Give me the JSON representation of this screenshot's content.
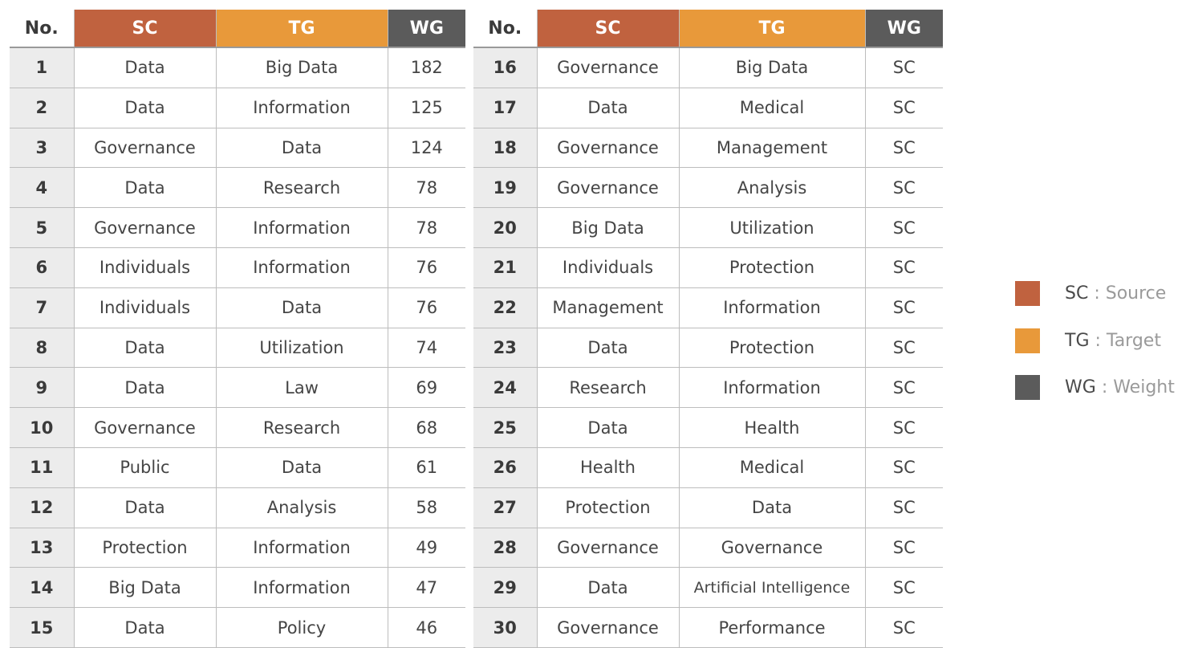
{
  "tables": [
    {
      "headers": [
        "No.",
        "SC",
        "TG",
        "WG"
      ],
      "rows": [
        [
          1,
          "Data",
          "Big Data",
          182
        ],
        [
          2,
          "Data",
          "Information",
          125
        ],
        [
          3,
          "Governance",
          "Data",
          124
        ],
        [
          4,
          "Data",
          "Research",
          78
        ],
        [
          5,
          "Governance",
          "Information",
          78
        ],
        [
          6,
          "Individuals",
          "Information",
          76
        ],
        [
          7,
          "Individuals",
          "Data",
          76
        ],
        [
          8,
          "Data",
          "Utilization",
          74
        ],
        [
          9,
          "Data",
          "Law",
          69
        ],
        [
          10,
          "Governance",
          "Research",
          68
        ],
        [
          11,
          "Public",
          "Data",
          61
        ],
        [
          12,
          "Data",
          "Analysis",
          58
        ],
        [
          13,
          "Protection",
          "Information",
          49
        ],
        [
          14,
          "Big Data",
          "Information",
          47
        ],
        [
          15,
          "Data",
          "Policy",
          46
        ]
      ]
    },
    {
      "headers": [
        "No.",
        "SC",
        "TG",
        "WG"
      ],
      "rows": [
        [
          16,
          "Governance",
          "Big Data",
          "SC"
        ],
        [
          17,
          "Data",
          "Medical",
          "SC"
        ],
        [
          18,
          "Governance",
          "Management",
          "SC"
        ],
        [
          19,
          "Governance",
          "Analysis",
          "SC"
        ],
        [
          20,
          "Big Data",
          "Utilization",
          "SC"
        ],
        [
          21,
          "Individuals",
          "Protection",
          "SC"
        ],
        [
          22,
          "Management",
          "Information",
          "SC"
        ],
        [
          23,
          "Data",
          "Protection",
          "SC"
        ],
        [
          24,
          "Research",
          "Information",
          "SC"
        ],
        [
          25,
          "Data",
          "Health",
          "SC"
        ],
        [
          26,
          "Health",
          "Medical",
          "SC"
        ],
        [
          27,
          "Protection",
          "Data",
          "SC"
        ],
        [
          28,
          "Governance",
          "Governance",
          "SC"
        ],
        [
          29,
          "Data",
          "Artificial Intelligence",
          "SC"
        ],
        [
          30,
          "Governance",
          "Performance",
          "SC"
        ]
      ]
    }
  ],
  "legend": [
    {
      "key": "SC",
      "text": ": Source",
      "color": "#c0623f"
    },
    {
      "key": "TG",
      "text": ": Target",
      "color": "#e8993a"
    },
    {
      "key": "WG",
      "text": ": Weight",
      "color": "#5b5b5b"
    }
  ]
}
